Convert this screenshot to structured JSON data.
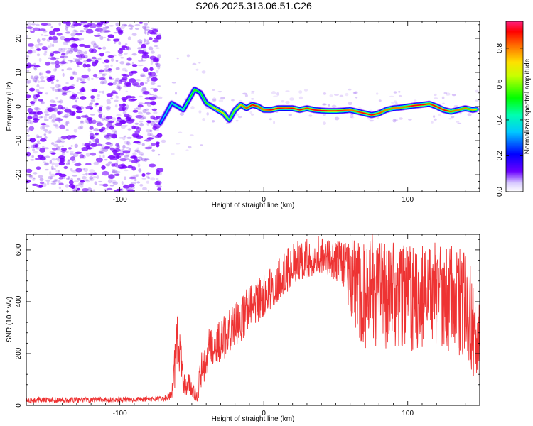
{
  "title": "S206.2025.313.06.51.C26",
  "colors": {
    "line": "#ee3333",
    "spectral_scatter": "#8844ee",
    "spectral_core": "#7700ff"
  },
  "chart_data": [
    {
      "type": "heatmap",
      "title": "S206.2025.313.06.51.C26",
      "xlabel": "Height of straight line (km)",
      "ylabel": "Frequency (Hz)",
      "xlim": [
        -165,
        150
      ],
      "ylim": [
        -25,
        25
      ],
      "xticks": [
        -100,
        0,
        100
      ],
      "xtick_labels": [
        "-100",
        "0",
        "100"
      ],
      "yticks": [
        -20,
        -10,
        0,
        10,
        20
      ],
      "ytick_labels": [
        "-20",
        "-10",
        "0",
        "10",
        "20"
      ],
      "colorbar": {
        "label": "Normalized spectral amplitude",
        "range": [
          0.0,
          0.95
        ],
        "ticks": [
          0.0,
          0.2,
          0.4,
          0.6,
          0.8
        ],
        "tick_labels": [
          "0.0",
          "0.2",
          "0.4",
          "0.6",
          "0.8"
        ]
      },
      "noise_region_x": [
        -165,
        -72
      ],
      "ridge": {
        "x": [
          -72,
          -68,
          -64,
          -60,
          -56,
          -52,
          -48,
          -44,
          -40,
          -36,
          -32,
          -28,
          -24,
          -20,
          -16,
          -12,
          -8,
          -4,
          0,
          5,
          10,
          15,
          20,
          25,
          30,
          35,
          40,
          45,
          50,
          55,
          60,
          65,
          70,
          75,
          80,
          85,
          90,
          95,
          100,
          105,
          110,
          115,
          120,
          125,
          130,
          135,
          140,
          145,
          148
        ],
        "y": [
          -5,
          -2,
          1,
          0,
          -1,
          2,
          5,
          4,
          1,
          0,
          -1,
          -2,
          -4,
          -1,
          0.5,
          -0.5,
          0.5,
          0,
          -1,
          -1,
          -0.5,
          -0.5,
          -0.5,
          -1,
          -0.5,
          -1,
          -1.2,
          -1.3,
          -1.3,
          -1.2,
          -1,
          -1.5,
          -2,
          -2.5,
          -2,
          -1,
          -0.5,
          -0.3,
          0,
          0.3,
          0.5,
          0.8,
          0,
          -1,
          -1.5,
          -1,
          -0.5,
          -1,
          -0.8
        ],
        "amplitude": [
          0.3,
          0.35,
          0.4,
          0.4,
          0.45,
          0.5,
          0.55,
          0.5,
          0.55,
          0.6,
          0.75,
          0.7,
          0.55,
          0.6,
          0.75,
          0.85,
          0.9,
          0.85,
          0.8,
          0.9,
          0.9,
          0.85,
          0.9,
          0.9,
          0.85,
          0.9,
          0.9,
          0.9,
          0.9,
          0.85,
          0.8,
          0.85,
          0.9,
          0.9,
          0.85,
          0.8,
          0.8,
          0.8,
          0.85,
          0.9,
          0.9,
          0.85,
          0.9,
          0.9,
          0.85,
          0.8,
          0.8,
          0.75,
          0.7
        ]
      }
    },
    {
      "type": "line",
      "xlabel": "Height of straight line (km)",
      "ylabel": "SNR (10 * v/v)",
      "xlim": [
        -165,
        150
      ],
      "ylim": [
        0,
        660
      ],
      "xticks": [
        -100,
        0,
        100
      ],
      "xtick_labels": [
        "-100",
        "0",
        "100"
      ],
      "yticks": [
        0,
        200,
        400,
        600
      ],
      "ytick_labels": [
        "0",
        "200",
        "400",
        "600"
      ],
      "series": [
        {
          "name": "SNR",
          "x": [
            -165,
            -100,
            -70,
            -64,
            -62,
            -60,
            -58,
            -56,
            -54,
            -52,
            -50,
            -48,
            -46,
            -44,
            -42,
            -40,
            -38,
            -36,
            -30,
            -25,
            -20,
            -15,
            -10,
            -5,
            0,
            5,
            10,
            15,
            20,
            25,
            30,
            35,
            40,
            45,
            50,
            55,
            60,
            62,
            65,
            70,
            75,
            80,
            85,
            90,
            95,
            100,
            105,
            110,
            115,
            120,
            125,
            130,
            135,
            140,
            142,
            145,
            148,
            150
          ],
          "y": [
            20,
            22,
            25,
            40,
            120,
            220,
            200,
            80,
            60,
            110,
            40,
            30,
            20,
            120,
            140,
            160,
            200,
            210,
            230,
            260,
            300,
            330,
            360,
            390,
            410,
            430,
            460,
            490,
            510,
            530,
            540,
            550,
            560,
            560,
            555,
            560,
            530,
            500,
            480,
            470,
            470,
            460,
            455,
            460,
            455,
            450,
            450,
            455,
            460,
            455,
            450,
            445,
            440,
            420,
            400,
            300,
            200,
            270
          ],
          "min_envelope": [
            10,
            12,
            15,
            25,
            60,
            140,
            120,
            40,
            30,
            60,
            20,
            15,
            10,
            60,
            80,
            100,
            140,
            150,
            170,
            190,
            220,
            250,
            280,
            310,
            340,
            370,
            400,
            430,
            460,
            480,
            490,
            500,
            510,
            500,
            480,
            440,
            360,
            300,
            240,
            220,
            230,
            220,
            210,
            220,
            210,
            200,
            210,
            210,
            220,
            230,
            220,
            200,
            180,
            160,
            150,
            100,
            40,
            120
          ],
          "max_envelope": [
            32,
            32,
            35,
            60,
            220,
            380,
            300,
            140,
            100,
            170,
            90,
            80,
            60,
            200,
            220,
            260,
            300,
            310,
            330,
            360,
            400,
            440,
            470,
            500,
            520,
            540,
            570,
            600,
            620,
            640,
            650,
            660,
            650,
            640,
            640,
            650,
            650,
            640,
            640,
            650,
            660,
            650,
            640,
            630,
            620,
            620,
            610,
            620,
            630,
            630,
            620,
            615,
            610,
            600,
            580,
            500,
            320,
            480
          ]
        }
      ]
    }
  ]
}
